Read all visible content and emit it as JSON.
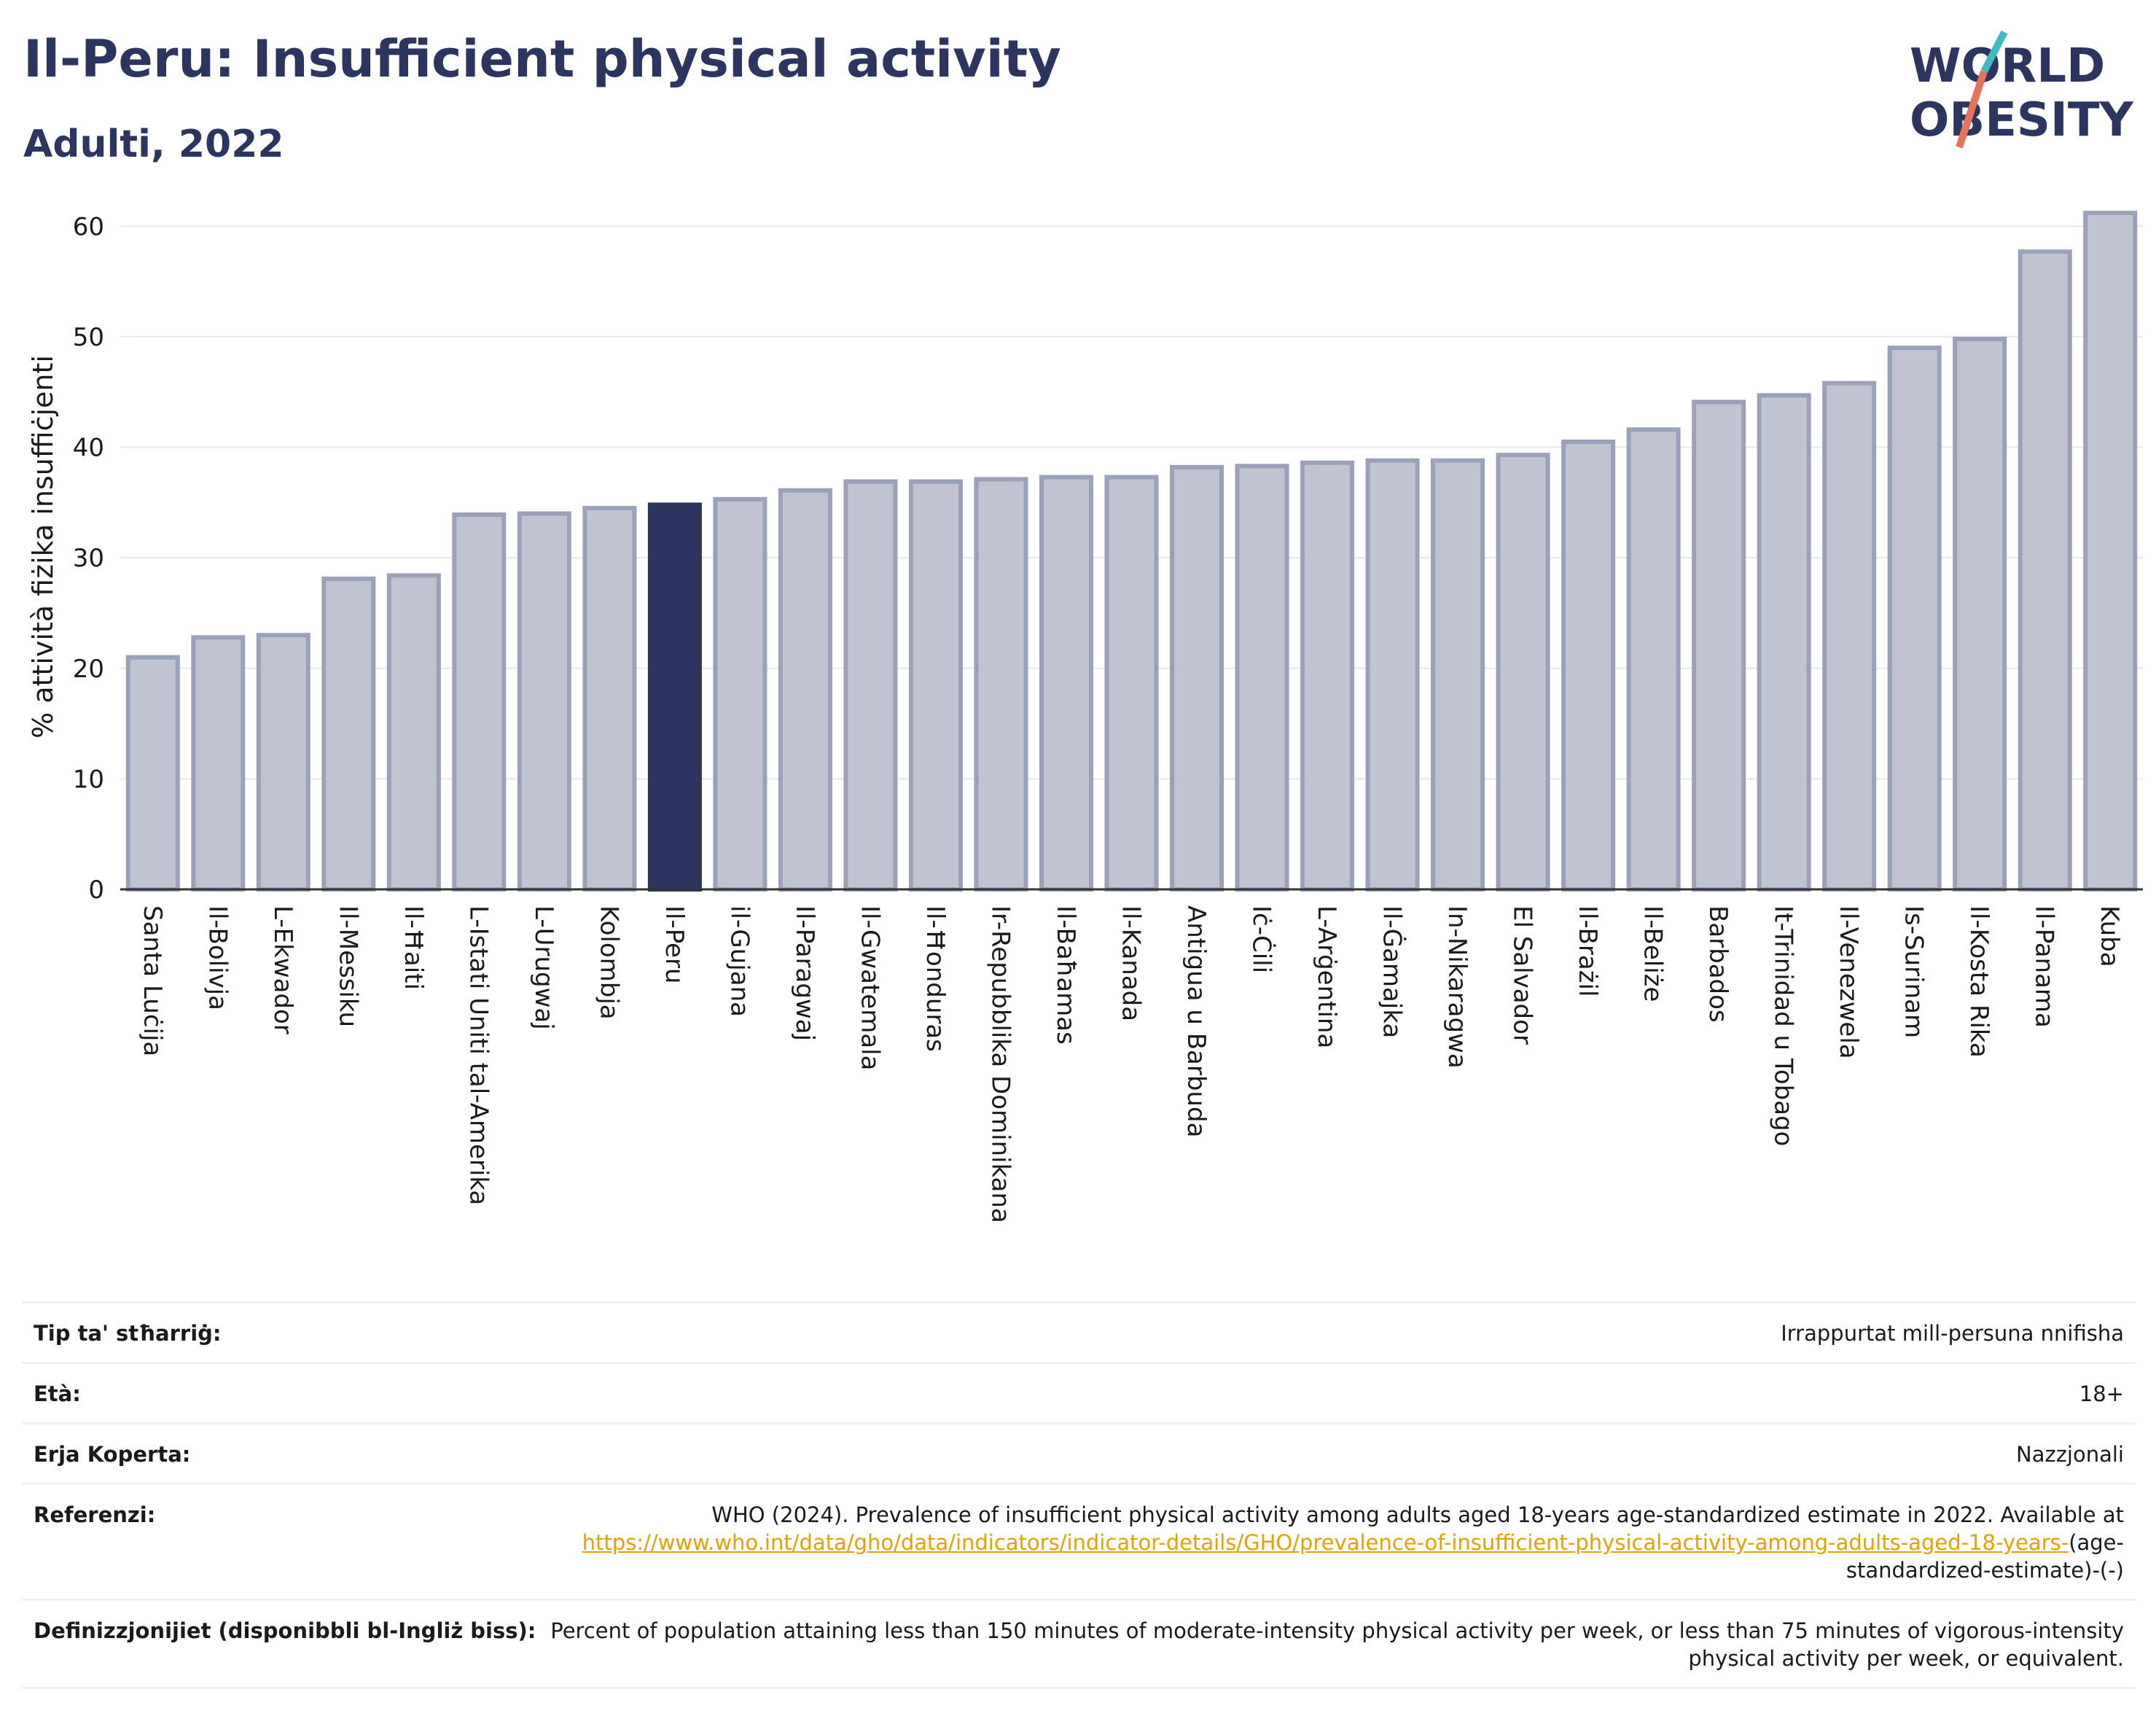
{
  "header": {
    "title": "Il-Peru: Insufficient physical activity",
    "subtitle": "Adulti, 2022"
  },
  "logo": {
    "line1": "WORLD",
    "line2": "OBESITY",
    "colors": {
      "text": "#2c3560",
      "slash_teal": "#3cbcc0",
      "slash_coral": "#e8735a"
    }
  },
  "chart_data": {
    "type": "bar",
    "ylabel": "% attività fiżika insuffiċjenti",
    "ylim": [
      0,
      62
    ],
    "yticks": [
      0,
      10,
      20,
      30,
      40,
      50,
      60
    ],
    "grid": true,
    "highlight": "Il-Peru",
    "colors": {
      "bar": "#c0c4d1",
      "bar_edge": "#9aa1b8",
      "highlight": "#2c3560"
    },
    "categories": [
      "Santa Luċija",
      "Il-Bolivja",
      "L-Ekwador",
      "Il-Messiku",
      "Il-Ħaiti",
      "L-Istati Uniti tal-Amerika",
      "L-Urugwaj",
      "Kolombja",
      "Il-Peru",
      "il-Gujana",
      "Il-Paragwaj",
      "Il-Gwatemala",
      "Il-Ħonduras",
      "Ir-Repubblika Dominikana",
      "Il-Baħamas",
      "Il-Kanada",
      "Antigua u Barbuda",
      "Iċ-Ċili",
      "L-Arġentina",
      "Il-Ġamajka",
      "In-Nikaragwa",
      "El Salvador",
      "Il-Brażil",
      "Il-Beliże",
      "Barbados",
      "It-Trinidad u Tobago",
      "Il-Venezwela",
      "Is-Surinam",
      "Il-Kosta Rika",
      "Il-Panama",
      "Kuba"
    ],
    "values": [
      21.0,
      22.8,
      23.0,
      28.1,
      28.4,
      33.9,
      34.0,
      34.5,
      34.8,
      35.3,
      36.1,
      36.9,
      36.9,
      37.1,
      37.3,
      37.3,
      38.2,
      38.3,
      38.6,
      38.8,
      38.8,
      39.3,
      40.5,
      41.6,
      44.1,
      44.7,
      45.8,
      49.0,
      49.8,
      57.7,
      61.2
    ]
  },
  "meta": [
    {
      "label": "Tip ta' stħarriġ:",
      "value": "Irrappurtat mill-persuna nnifisha"
    },
    {
      "label": "Età:",
      "value": "18+"
    },
    {
      "label": "Erja Koperta:",
      "value": "Nazzjonali"
    },
    {
      "label": "Referenzi:",
      "value": "WHO (2024). Prevalence of insufficient physical activity among adults aged 18-years age-standardized estimate in 2022. Available at",
      "link": "https://www.who.int/data/gho/data/indicators/indicator-details/GHO/prevalence-of-insufficient-physical-activity-among-adults-aged-18-years-",
      "suffix": "(age-standardized-estimate)-(-)"
    },
    {
      "label": "Definizzjonijiet (disponibbli bl-Ingliż biss):",
      "value": "Percent of population attaining less than 150 minutes of moderate-intensity physical activity per week, or less than 75 minutes of vigorous-intensity physical activity per week, or equivalent."
    }
  ]
}
